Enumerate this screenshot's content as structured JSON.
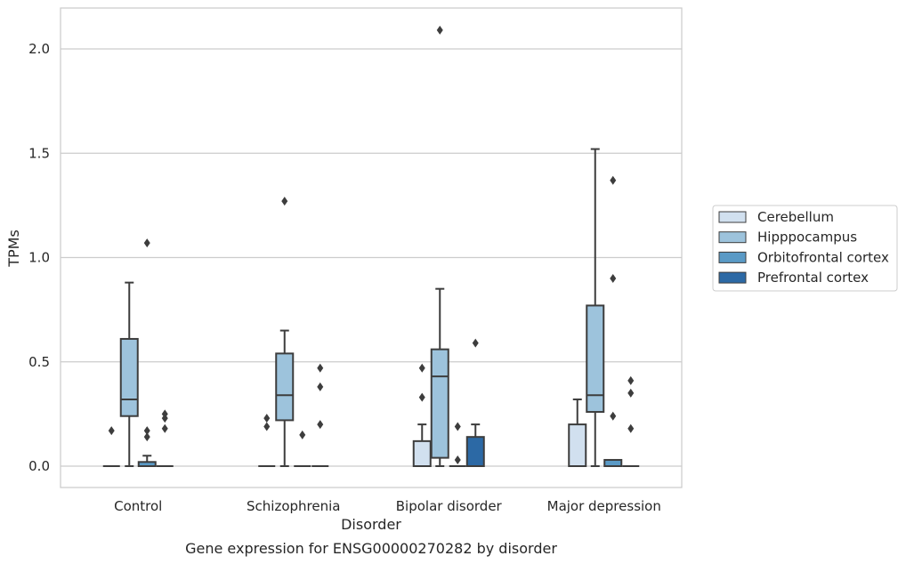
{
  "chart_data": {
    "type": "box",
    "title": "",
    "caption": "Gene expression for ENSG00000270282 by disorder",
    "xlabel": "Disorder",
    "ylabel": "TPMs",
    "ylim": [
      -0.1,
      2.2
    ],
    "yticks": [
      0.0,
      0.5,
      1.0,
      1.5,
      2.0
    ],
    "ytick_labels": [
      "0.0",
      "0.5",
      "1.0",
      "1.5",
      "2.0"
    ],
    "grid": "horizontal",
    "legend_position": "right",
    "categories": [
      "Control",
      "Schizophrenia",
      "Bipolar disorder",
      "Major depression"
    ],
    "series": [
      {
        "name": "Cerebellum",
        "color": "#d1e0ef",
        "boxes": [
          {
            "category": "Control",
            "q1": 0.0,
            "median": 0.0,
            "q3": 0.0,
            "whisker_low": 0.0,
            "whisker_high": 0.0,
            "outliers": [
              0.17
            ]
          },
          {
            "category": "Schizophrenia",
            "q1": 0.0,
            "median": 0.0,
            "q3": 0.0,
            "whisker_low": 0.0,
            "whisker_high": 0.0,
            "outliers": [
              0.19,
              0.23
            ]
          },
          {
            "category": "Bipolar disorder",
            "q1": 0.0,
            "median": 0.0,
            "q3": 0.12,
            "whisker_low": 0.0,
            "whisker_high": 0.2,
            "outliers": [
              0.33,
              0.47
            ]
          },
          {
            "category": "Major depression",
            "q1": 0.0,
            "median": 0.0,
            "q3": 0.2,
            "whisker_low": 0.0,
            "whisker_high": 0.32,
            "outliers": []
          }
        ]
      },
      {
        "name": "Hipppocampus",
        "color": "#9dc3dc",
        "boxes": [
          {
            "category": "Control",
            "q1": 0.24,
            "median": 0.32,
            "q3": 0.61,
            "whisker_low": 0.0,
            "whisker_high": 0.88,
            "outliers": []
          },
          {
            "category": "Schizophrenia",
            "q1": 0.22,
            "median": 0.34,
            "q3": 0.54,
            "whisker_low": 0.0,
            "whisker_high": 0.65,
            "outliers": [
              1.27
            ]
          },
          {
            "category": "Bipolar disorder",
            "q1": 0.04,
            "median": 0.43,
            "q3": 0.56,
            "whisker_low": 0.0,
            "whisker_high": 0.85,
            "outliers": [
              2.09
            ]
          },
          {
            "category": "Major depression",
            "q1": 0.26,
            "median": 0.34,
            "q3": 0.77,
            "whisker_low": 0.0,
            "whisker_high": 1.52,
            "outliers": []
          }
        ]
      },
      {
        "name": "Orbitofrontal cortex",
        "color": "#5a9ac6",
        "boxes": [
          {
            "category": "Control",
            "q1": 0.0,
            "median": 0.0,
            "q3": 0.02,
            "whisker_low": 0.0,
            "whisker_high": 0.05,
            "outliers": [
              0.14,
              0.17,
              1.07
            ]
          },
          {
            "category": "Schizophrenia",
            "q1": 0.0,
            "median": 0.0,
            "q3": 0.0,
            "whisker_low": 0.0,
            "whisker_high": 0.0,
            "outliers": [
              0.15
            ]
          },
          {
            "category": "Bipolar disorder",
            "q1": 0.0,
            "median": 0.0,
            "q3": 0.0,
            "whisker_low": 0.0,
            "whisker_high": 0.0,
            "outliers": [
              0.03,
              0.19
            ]
          },
          {
            "category": "Major depression",
            "q1": 0.0,
            "median": 0.0,
            "q3": 0.03,
            "whisker_low": 0.0,
            "whisker_high": 0.03,
            "outliers": [
              0.24,
              0.9,
              1.37
            ]
          }
        ]
      },
      {
        "name": "Prefrontal cortex",
        "color": "#2c69a5",
        "boxes": [
          {
            "category": "Control",
            "q1": 0.0,
            "median": 0.0,
            "q3": 0.0,
            "whisker_low": 0.0,
            "whisker_high": 0.0,
            "outliers": [
              0.18,
              0.23,
              0.25
            ]
          },
          {
            "category": "Schizophrenia",
            "q1": 0.0,
            "median": 0.0,
            "q3": 0.0,
            "whisker_low": 0.0,
            "whisker_high": 0.0,
            "outliers": [
              0.2,
              0.38,
              0.47
            ]
          },
          {
            "category": "Bipolar disorder",
            "q1": 0.0,
            "median": 0.0,
            "q3": 0.14,
            "whisker_low": 0.0,
            "whisker_high": 0.2,
            "outliers": [
              0.59
            ]
          },
          {
            "category": "Major depression",
            "q1": 0.0,
            "median": 0.0,
            "q3": 0.0,
            "whisker_low": 0.0,
            "whisker_high": 0.0,
            "outliers": [
              0.18,
              0.35,
              0.41
            ]
          }
        ]
      }
    ]
  }
}
